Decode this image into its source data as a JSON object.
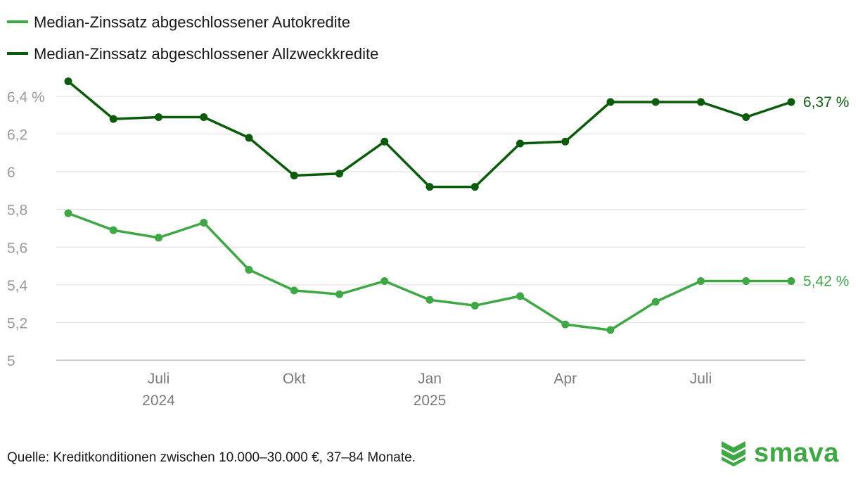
{
  "chart_data": {
    "type": "line",
    "x": [
      "2024-05",
      "2024-06",
      "2024-07",
      "2024-08",
      "2024-09",
      "2024-10",
      "2024-11",
      "2024-12",
      "2025-01",
      "2025-02",
      "2025-03",
      "2025-04",
      "2025-05",
      "2025-06",
      "2025-07",
      "2025-08",
      "2025-09"
    ],
    "x_ticks": [
      {
        "index": 2,
        "label": "Juli",
        "year": "2024"
      },
      {
        "index": 5,
        "label": "Okt",
        "year": ""
      },
      {
        "index": 8,
        "label": "Jan",
        "year": "2025"
      },
      {
        "index": 11,
        "label": "Apr",
        "year": ""
      },
      {
        "index": 14,
        "label": "Juli",
        "year": ""
      }
    ],
    "y_ticks": [
      5,
      5.2,
      5.4,
      5.6,
      5.8,
      6,
      6.2,
      6.4
    ],
    "y_tick_labels": [
      "5",
      "5,2",
      "5,4",
      "5,6",
      "5,8",
      "6",
      "6,2",
      "6,4 %"
    ],
    "ylim": [
      5,
      6.4
    ],
    "grid": true,
    "legend_position": "top-left",
    "series": [
      {
        "name": "Median-Zinssatz abgeschlossener Autokredite",
        "color": "#3ea844",
        "values": [
          5.78,
          5.69,
          5.65,
          5.73,
          5.48,
          5.37,
          5.35,
          5.42,
          5.32,
          5.29,
          5.34,
          5.19,
          5.16,
          5.31,
          5.42,
          5.42,
          5.42
        ],
        "end_label": "5,42 %"
      },
      {
        "name": "Median-Zinssatz abgeschlossener Allzweckkredite",
        "color": "#0a5c0a",
        "values": [
          6.48,
          6.28,
          6.29,
          6.29,
          6.18,
          5.98,
          5.99,
          6.16,
          5.92,
          5.92,
          6.15,
          6.16,
          6.37,
          6.37,
          6.37,
          6.29,
          6.37
        ],
        "end_label": "6,37 %"
      }
    ]
  },
  "footer": {
    "source_text": "Quelle: Kreditkonditionen zwischen 10.000–30.000 €, 37–84 Monate."
  },
  "brand": {
    "logo_text": "smava",
    "logo_color": "#3ea844",
    "logo_icon": "smava-chevron-logo-icon"
  }
}
